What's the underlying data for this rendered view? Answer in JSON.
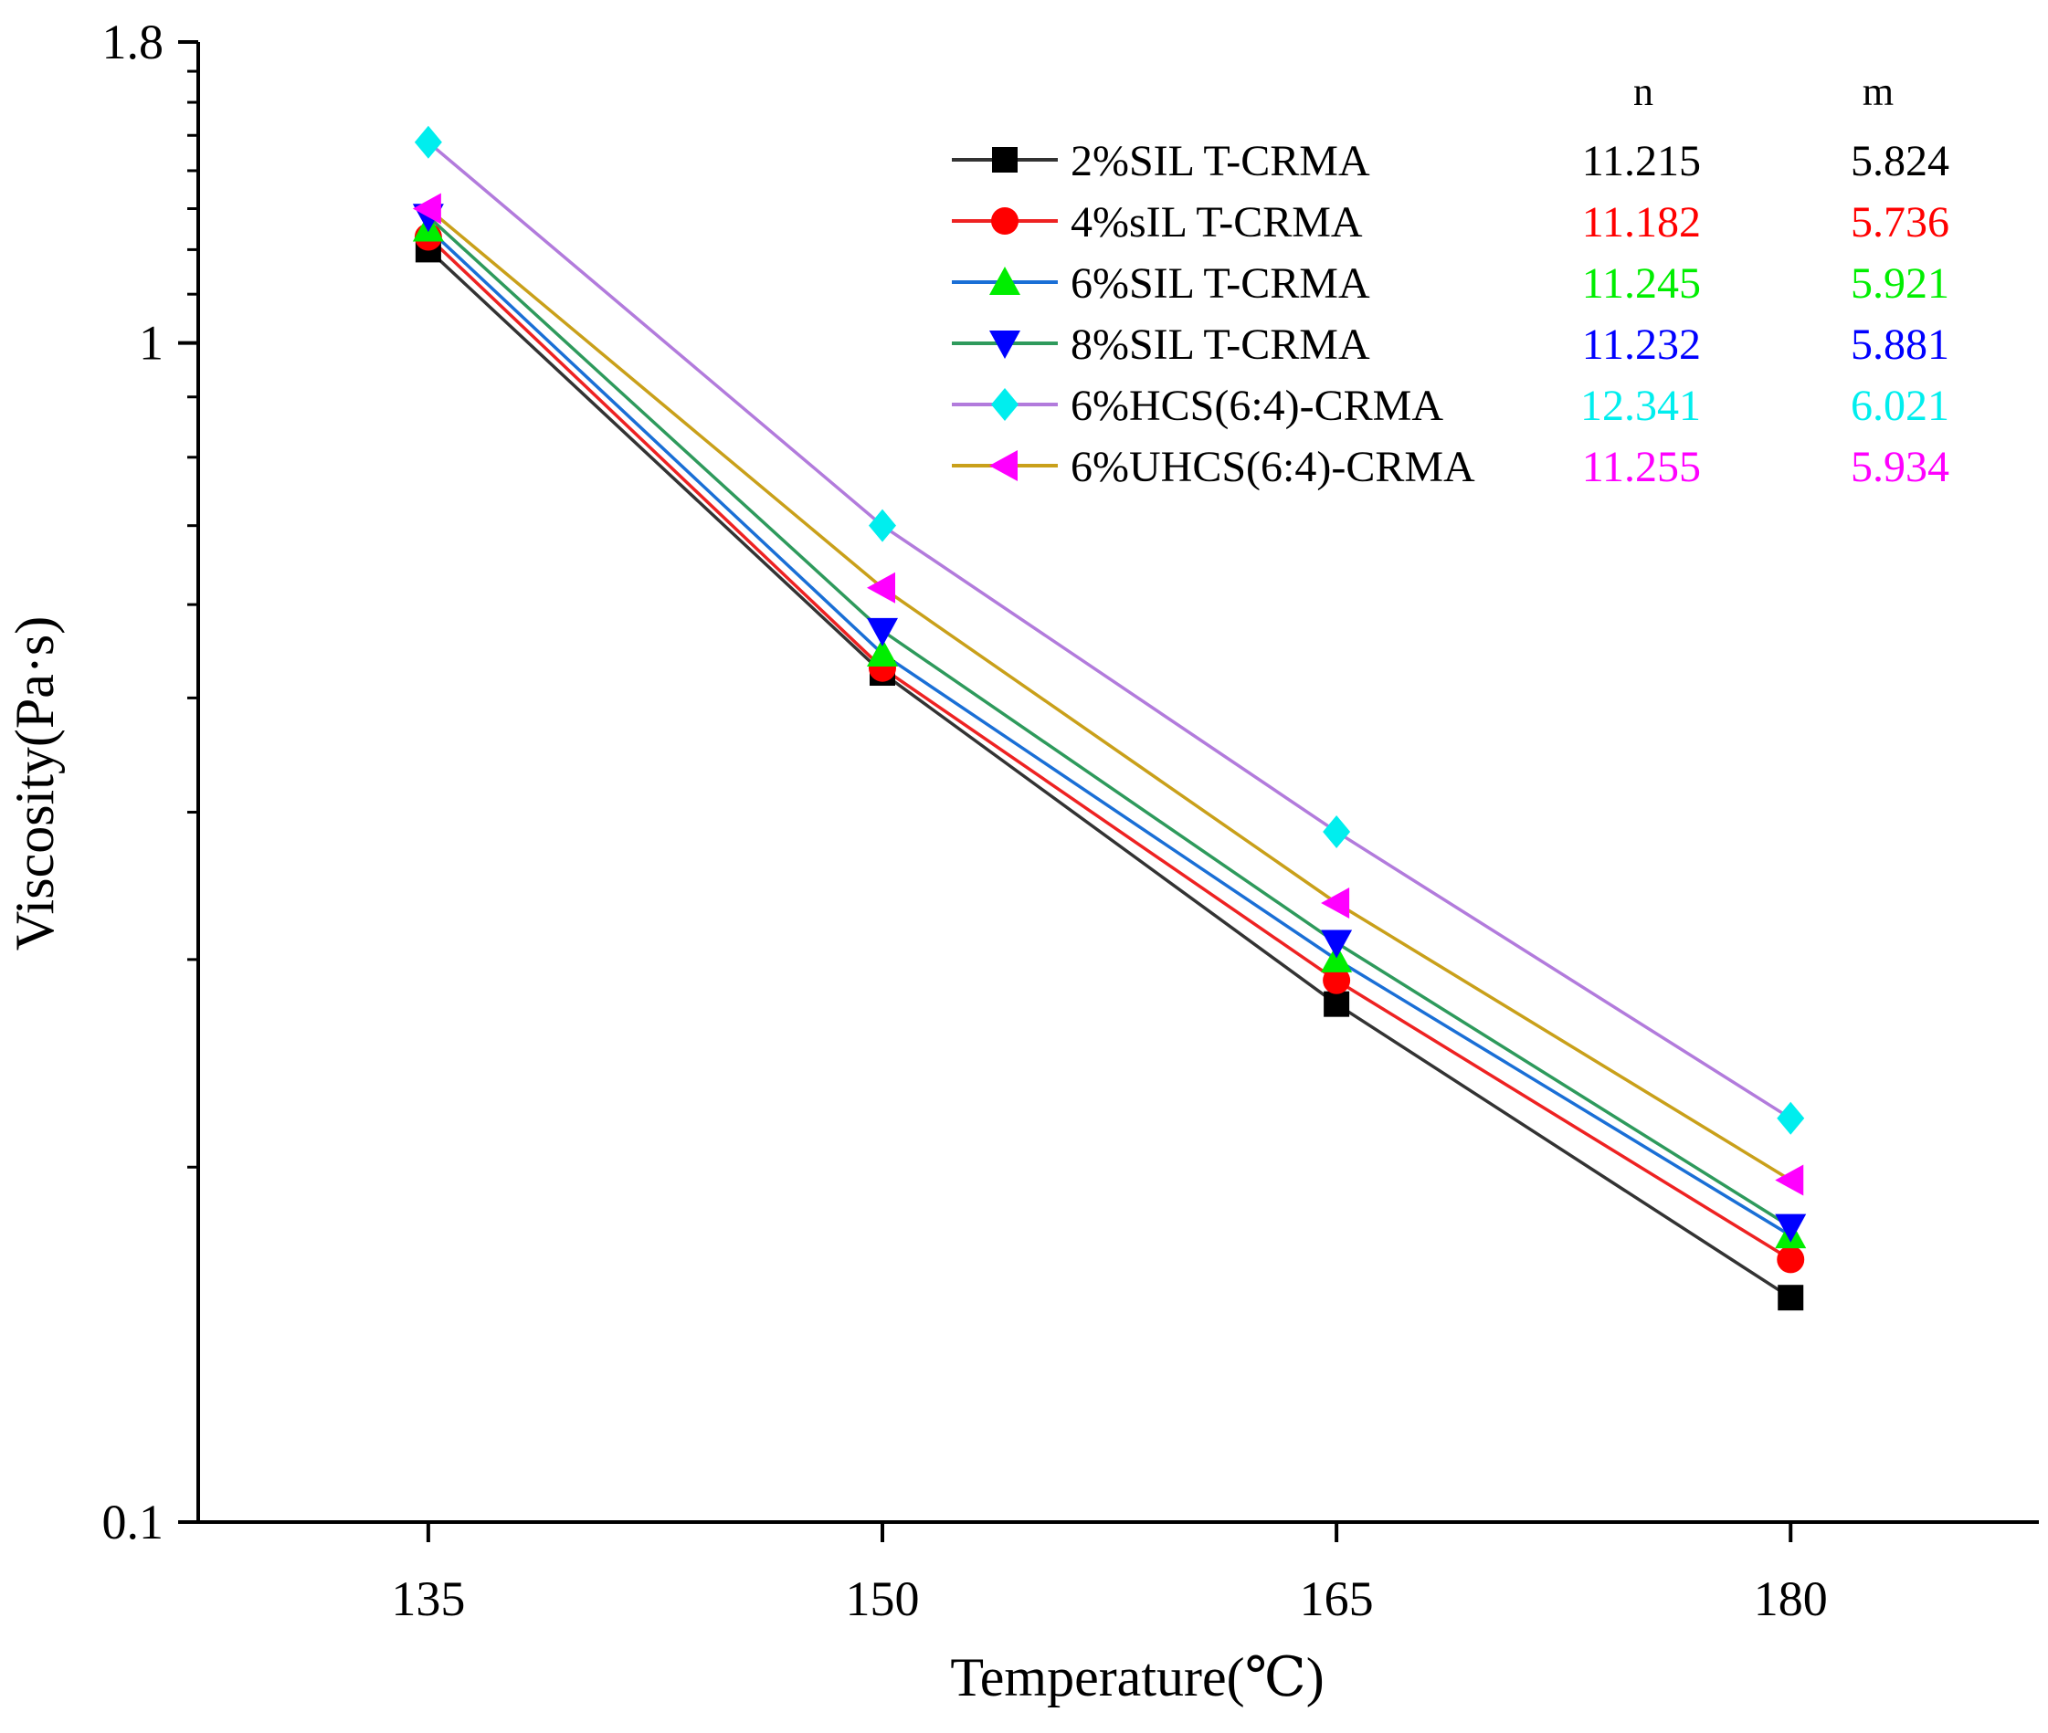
{
  "chart_data": {
    "type": "line",
    "title": "",
    "xlabel": "Temperature(℃)",
    "ylabel": "Viscosity(Pa·s)",
    "x": [
      135,
      150,
      165,
      180
    ],
    "x_ticks": [
      "135",
      "150",
      "165",
      "180"
    ],
    "x_range": [
      127.4,
      188.2
    ],
    "y_scale": "log",
    "y_ticks": [
      "1.8",
      "1",
      "0.1"
    ],
    "y_tick_values": [
      1.8,
      1,
      0.1
    ],
    "ylim": [
      0.1,
      1.8
    ],
    "grid": false,
    "legend_position": "top-right",
    "legend_headers": {
      "n": "n",
      "m": "m"
    },
    "series": [
      {
        "name": "2%SIL T-CRMA",
        "n": "11.215",
        "m": "5.824",
        "color": "#000000",
        "line_color": "#333333",
        "marker": "square",
        "values": [
          1.2,
          0.525,
          0.275,
          0.155
        ]
      },
      {
        "name": "4%sIL T-CRMA",
        "n": "11.182",
        "m": "5.736",
        "color": "#ff0000",
        "line_color": "#ee2222",
        "marker": "circle",
        "values": [
          1.23,
          0.53,
          0.288,
          0.167
        ]
      },
      {
        "name": "6%SIL T-CRMA",
        "n": "11.245",
        "m": "5.921",
        "color": "#00ee00",
        "line_color": "#1a6fd6",
        "marker": "triangle-up",
        "values": [
          1.25,
          0.545,
          0.3,
          0.175
        ]
      },
      {
        "name": "8%SIL T-CRMA",
        "n": "11.232",
        "m": "5.881",
        "color": "#0000ff",
        "line_color": "#2e9a5c",
        "marker": "triangle-down",
        "values": [
          1.28,
          0.57,
          0.31,
          0.178
        ]
      },
      {
        "name": "6%HCS(6:4)-CRMA",
        "n": "12.341",
        "m": "6.021",
        "color": "#00eeee",
        "line_color": "#b27bdc",
        "marker": "diamond",
        "values": [
          1.48,
          0.7,
          0.385,
          0.22
        ]
      },
      {
        "name": "6%UHCS(6:4)-CRMA",
        "n": "11.255",
        "m": "5.934",
        "color": "#ff00ff",
        "line_color": "#c9a01a",
        "marker": "triangle-left",
        "values": [
          1.3,
          0.62,
          0.335,
          0.195
        ]
      }
    ]
  }
}
